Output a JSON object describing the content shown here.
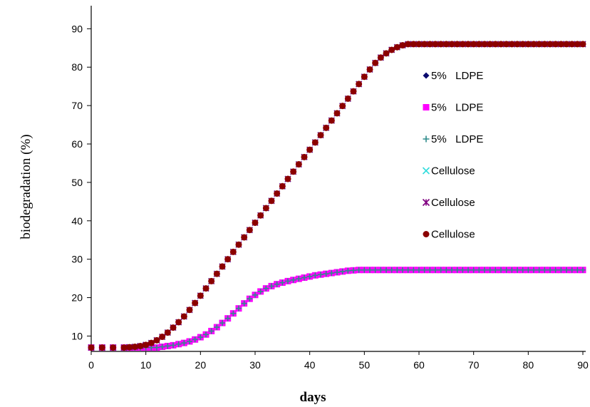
{
  "chart_data": {
    "type": "scatter",
    "title": "",
    "xlabel": "days",
    "ylabel": "biodegradation (%)",
    "xlim": [
      0,
      90
    ],
    "ylim": [
      6,
      96
    ],
    "xticks": [
      0,
      10,
      20,
      30,
      40,
      50,
      60,
      70,
      80,
      90
    ],
    "yticks": [
      10,
      20,
      30,
      40,
      50,
      60,
      70,
      80,
      90
    ],
    "grid": false,
    "legend": "right",
    "series": [
      {
        "name": "5%   LDPE",
        "marker": "diamond",
        "color": "#0a0a6e",
        "x": [
          0,
          2,
          4,
          6,
          7,
          8,
          9,
          10,
          11,
          12,
          13,
          14,
          15,
          16,
          17,
          18,
          19,
          20,
          21,
          22,
          23,
          24,
          25,
          26,
          27,
          28,
          29,
          30,
          31,
          32,
          33,
          34,
          35,
          36,
          37,
          38,
          39,
          40,
          41,
          42,
          43,
          44,
          45,
          46,
          47,
          48,
          49,
          50,
          51,
          52,
          53,
          54,
          55,
          56,
          57,
          58,
          59,
          60,
          61,
          62,
          63,
          64,
          65,
          66,
          67,
          68,
          69,
          70,
          71,
          72,
          73,
          74,
          75,
          76,
          77,
          78,
          79,
          80,
          81,
          82,
          83,
          84,
          85,
          86,
          87,
          88,
          89,
          90
        ],
        "y": [
          7,
          7,
          7,
          7,
          7,
          7,
          7,
          7,
          7,
          7,
          7.2,
          7.4,
          7.6,
          7.9,
          8.2,
          8.6,
          9.1,
          9.7,
          10.4,
          11.3,
          12.3,
          13.4,
          14.6,
          15.9,
          17.2,
          18.5,
          19.7,
          20.7,
          21.6,
          22.4,
          23,
          23.5,
          23.9,
          24.3,
          24.6,
          24.9,
          25.2,
          25.5,
          25.8,
          26,
          26.2,
          26.4,
          26.6,
          26.8,
          27,
          27.1,
          27.2,
          27.2,
          27.2,
          27.2,
          27.2,
          27.2,
          27.2,
          27.2,
          27.2,
          27.2,
          27.2,
          27.2,
          27.2,
          27.2,
          27.2,
          27.2,
          27.2,
          27.2,
          27.2,
          27.2,
          27.2,
          27.2,
          27.2,
          27.2,
          27.2,
          27.2,
          27.2,
          27.2,
          27.2,
          27.2,
          27.2,
          27.2,
          27.2,
          27.2,
          27.2,
          27.2,
          27.2,
          27.2,
          27.2,
          27.2,
          27.2,
          27.2
        ]
      },
      {
        "name": "5%   LDPE",
        "marker": "square",
        "color": "#ff00ff",
        "x": [
          0,
          2,
          4,
          6,
          7,
          8,
          9,
          10,
          11,
          12,
          13,
          14,
          15,
          16,
          17,
          18,
          19,
          20,
          21,
          22,
          23,
          24,
          25,
          26,
          27,
          28,
          29,
          30,
          31,
          32,
          33,
          34,
          35,
          36,
          37,
          38,
          39,
          40,
          41,
          42,
          43,
          44,
          45,
          46,
          47,
          48,
          49,
          50,
          51,
          52,
          53,
          54,
          55,
          56,
          57,
          58,
          59,
          60,
          61,
          62,
          63,
          64,
          65,
          66,
          67,
          68,
          69,
          70,
          71,
          72,
          73,
          74,
          75,
          76,
          77,
          78,
          79,
          80,
          81,
          82,
          83,
          84,
          85,
          86,
          87,
          88,
          89,
          90
        ],
        "y": [
          7,
          7,
          7,
          7,
          7,
          7,
          7,
          7,
          7,
          7,
          7.2,
          7.4,
          7.6,
          7.9,
          8.2,
          8.6,
          9.1,
          9.7,
          10.4,
          11.3,
          12.3,
          13.4,
          14.6,
          15.9,
          17.2,
          18.5,
          19.7,
          20.7,
          21.6,
          22.4,
          23,
          23.5,
          23.9,
          24.3,
          24.6,
          24.9,
          25.2,
          25.5,
          25.8,
          26,
          26.2,
          26.4,
          26.6,
          26.8,
          27,
          27.1,
          27.2,
          27.2,
          27.2,
          27.2,
          27.2,
          27.2,
          27.2,
          27.2,
          27.2,
          27.2,
          27.2,
          27.2,
          27.2,
          27.2,
          27.2,
          27.2,
          27.2,
          27.2,
          27.2,
          27.2,
          27.2,
          27.2,
          27.2,
          27.2,
          27.2,
          27.2,
          27.2,
          27.2,
          27.2,
          27.2,
          27.2,
          27.2,
          27.2,
          27.2,
          27.2,
          27.2,
          27.2,
          27.2,
          27.2,
          27.2,
          27.2,
          27.2
        ]
      },
      {
        "name": "5%   LDPE",
        "marker": "plus",
        "color": "#2e8b8b",
        "x": [
          0,
          2,
          4,
          6,
          7,
          8,
          9,
          10,
          11,
          12,
          13,
          14,
          15,
          16,
          17,
          18,
          19,
          20,
          21,
          22,
          23,
          24,
          25,
          26,
          27,
          28,
          29,
          30,
          31,
          32,
          33,
          34,
          35,
          36,
          37,
          38,
          39,
          40,
          41,
          42,
          43,
          44,
          45,
          46,
          47,
          48,
          49,
          50,
          51,
          52,
          53,
          54,
          55,
          56,
          57,
          58,
          59,
          60,
          61,
          62,
          63,
          64,
          65,
          66,
          67,
          68,
          69,
          70,
          71,
          72,
          73,
          74,
          75,
          76,
          77,
          78,
          79,
          80,
          81,
          82,
          83,
          84,
          85,
          86,
          87,
          88,
          89,
          90
        ],
        "y": [
          7,
          7,
          7,
          7,
          7,
          7,
          7,
          7,
          7,
          7,
          7.2,
          7.4,
          7.6,
          7.9,
          8.2,
          8.6,
          9.1,
          9.7,
          10.4,
          11.3,
          12.3,
          13.4,
          14.6,
          15.9,
          17.2,
          18.5,
          19.7,
          20.7,
          21.6,
          22.4,
          23,
          23.5,
          23.9,
          24.3,
          24.6,
          24.9,
          25.2,
          25.5,
          25.8,
          26,
          26.2,
          26.4,
          26.6,
          26.8,
          27,
          27.1,
          27.2,
          27.2,
          27.2,
          27.2,
          27.2,
          27.2,
          27.2,
          27.2,
          27.2,
          27.2,
          27.2,
          27.2,
          27.2,
          27.2,
          27.2,
          27.2,
          27.2,
          27.2,
          27.2,
          27.2,
          27.2,
          27.2,
          27.2,
          27.2,
          27.2,
          27.2,
          27.2,
          27.2,
          27.2,
          27.2,
          27.2,
          27.2,
          27.2,
          27.2,
          27.2,
          27.2,
          27.2,
          27.2,
          27.2,
          27.2,
          27.2,
          27.2
        ]
      },
      {
        "name": "Cellulose",
        "marker": "x",
        "color": "#33dddd",
        "x": [
          0,
          2,
          4,
          6,
          7,
          8,
          9,
          10,
          11,
          12,
          13,
          14,
          15,
          16,
          17,
          18,
          19,
          20,
          21,
          22,
          23,
          24,
          25,
          26,
          27,
          28,
          29,
          30,
          31,
          32,
          33,
          34,
          35,
          36,
          37,
          38,
          39,
          40,
          41,
          42,
          43,
          44,
          45,
          46,
          47,
          48,
          49,
          50,
          51,
          52,
          53,
          54,
          55,
          56,
          57,
          58,
          59,
          60,
          61,
          62,
          63,
          64,
          65,
          66,
          67,
          68,
          69,
          70,
          71,
          72,
          73,
          74,
          75,
          76,
          77,
          78,
          79,
          80,
          81,
          82,
          83,
          84,
          85,
          86,
          87,
          88,
          89,
          90
        ],
        "y": [
          7,
          7,
          7,
          7,
          7.1,
          7.2,
          7.4,
          7.7,
          8.2,
          8.9,
          9.8,
          10.9,
          12.2,
          13.6,
          15.1,
          16.8,
          18.6,
          20.5,
          22.4,
          24.3,
          26.2,
          28.1,
          30,
          31.9,
          33.8,
          35.7,
          37.6,
          39.5,
          41.4,
          43.3,
          45.2,
          47.1,
          49,
          50.9,
          52.8,
          54.7,
          56.6,
          58.5,
          60.4,
          62.3,
          64.2,
          66.1,
          68,
          69.9,
          71.8,
          73.7,
          75.6,
          77.5,
          79.4,
          81.1,
          82.5,
          83.6,
          84.5,
          85.2,
          85.7,
          86,
          86,
          86,
          86,
          86,
          86,
          86,
          86,
          86,
          86,
          86,
          86,
          86,
          86,
          86,
          86,
          86,
          86,
          86,
          86,
          86,
          86,
          86,
          86,
          86,
          86,
          86,
          86,
          86,
          86,
          86,
          86,
          86
        ]
      },
      {
        "name": "Cellulose",
        "marker": "star",
        "color": "#800080",
        "x": [
          0,
          2,
          4,
          6,
          7,
          8,
          9,
          10,
          11,
          12,
          13,
          14,
          15,
          16,
          17,
          18,
          19,
          20,
          21,
          22,
          23,
          24,
          25,
          26,
          27,
          28,
          29,
          30,
          31,
          32,
          33,
          34,
          35,
          36,
          37,
          38,
          39,
          40,
          41,
          42,
          43,
          44,
          45,
          46,
          47,
          48,
          49,
          50,
          51,
          52,
          53,
          54,
          55,
          56,
          57,
          58,
          59,
          60,
          61,
          62,
          63,
          64,
          65,
          66,
          67,
          68,
          69,
          70,
          71,
          72,
          73,
          74,
          75,
          76,
          77,
          78,
          79,
          80,
          81,
          82,
          83,
          84,
          85,
          86,
          87,
          88,
          89,
          90
        ],
        "y": [
          7,
          7,
          7,
          7,
          7.1,
          7.2,
          7.4,
          7.7,
          8.2,
          8.9,
          9.8,
          10.9,
          12.2,
          13.6,
          15.1,
          16.8,
          18.6,
          20.5,
          22.4,
          24.3,
          26.2,
          28.1,
          30,
          31.9,
          33.8,
          35.7,
          37.6,
          39.5,
          41.4,
          43.3,
          45.2,
          47.1,
          49,
          50.9,
          52.8,
          54.7,
          56.6,
          58.5,
          60.4,
          62.3,
          64.2,
          66.1,
          68,
          69.9,
          71.8,
          73.7,
          75.6,
          77.5,
          79.4,
          81.1,
          82.5,
          83.6,
          84.5,
          85.2,
          85.7,
          86,
          86,
          86,
          86,
          86,
          86,
          86,
          86,
          86,
          86,
          86,
          86,
          86,
          86,
          86,
          86,
          86,
          86,
          86,
          86,
          86,
          86,
          86,
          86,
          86,
          86,
          86,
          86,
          86,
          86,
          86,
          86,
          86
        ]
      },
      {
        "name": "Cellulose",
        "marker": "circle",
        "color": "#8b0000",
        "x": [
          0,
          2,
          4,
          6,
          7,
          8,
          9,
          10,
          11,
          12,
          13,
          14,
          15,
          16,
          17,
          18,
          19,
          20,
          21,
          22,
          23,
          24,
          25,
          26,
          27,
          28,
          29,
          30,
          31,
          32,
          33,
          34,
          35,
          36,
          37,
          38,
          39,
          40,
          41,
          42,
          43,
          44,
          45,
          46,
          47,
          48,
          49,
          50,
          51,
          52,
          53,
          54,
          55,
          56,
          57,
          58,
          59,
          60,
          61,
          62,
          63,
          64,
          65,
          66,
          67,
          68,
          69,
          70,
          71,
          72,
          73,
          74,
          75,
          76,
          77,
          78,
          79,
          80,
          81,
          82,
          83,
          84,
          85,
          86,
          87,
          88,
          89,
          90
        ],
        "y": [
          7,
          7,
          7,
          7,
          7.1,
          7.2,
          7.4,
          7.7,
          8.2,
          8.9,
          9.8,
          10.9,
          12.2,
          13.6,
          15.1,
          16.8,
          18.6,
          20.5,
          22.4,
          24.3,
          26.2,
          28.1,
          30,
          31.9,
          33.8,
          35.7,
          37.6,
          39.5,
          41.4,
          43.3,
          45.2,
          47.1,
          49,
          50.9,
          52.8,
          54.7,
          56.6,
          58.5,
          60.4,
          62.3,
          64.2,
          66.1,
          68,
          69.9,
          71.8,
          73.7,
          75.6,
          77.5,
          79.4,
          81.1,
          82.5,
          83.6,
          84.5,
          85.2,
          85.7,
          86,
          86,
          86,
          86,
          86,
          86,
          86,
          86,
          86,
          86,
          86,
          86,
          86,
          86,
          86,
          86,
          86,
          86,
          86,
          86,
          86,
          86,
          86,
          86,
          86,
          86,
          86,
          86,
          86,
          86,
          86,
          86,
          86
        ]
      }
    ]
  }
}
